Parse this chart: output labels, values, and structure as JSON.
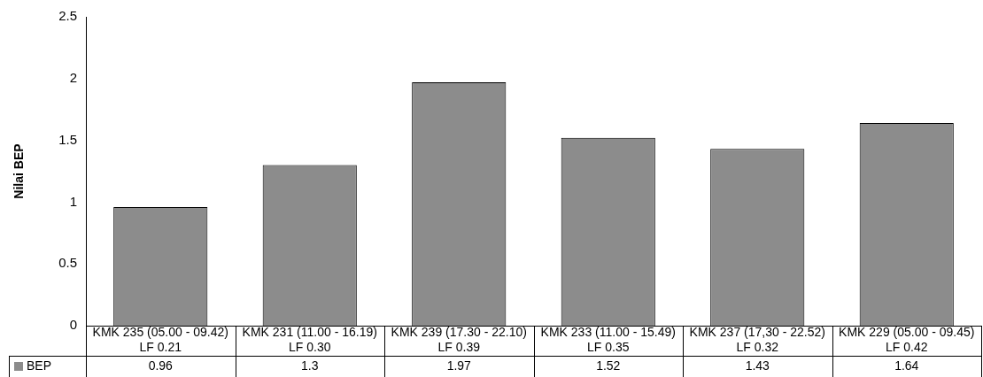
{
  "chart_data": {
    "type": "bar",
    "ylabel": "Nilai BEP",
    "categories": [
      "KMK 235 (05.00 - 09.42) LF 0.21",
      "KMK 231 (11.00 - 16.19) LF 0.30",
      "KMK 239 (17.30 - 22.10) LF 0.39",
      "KMK 233 (11.00 - 15.49) LF 0.35",
      "KMK 237 (17,30 - 22.52) LF 0.32",
      "KMK 229 (05.00 - 09.45) LF 0.42"
    ],
    "series": [
      {
        "name": "BEP",
        "color": "#8c8c8c",
        "values": [
          0.96,
          1.3,
          1.97,
          1.52,
          1.43,
          1.64
        ]
      }
    ],
    "ylim": [
      0,
      2.5
    ],
    "yticks": [
      0,
      0.5,
      1,
      1.5,
      2,
      2.5
    ],
    "grid": false,
    "legend": "bottom",
    "data_labels": true
  }
}
